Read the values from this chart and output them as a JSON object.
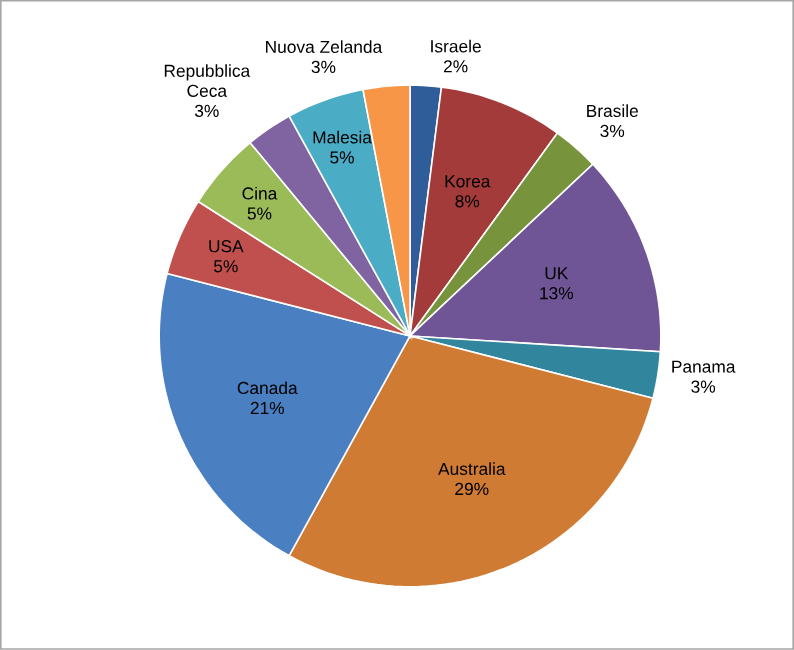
{
  "chart_data": {
    "type": "pie",
    "categories": [
      "Israele",
      "Korea",
      "Brasile",
      "UK",
      "Panama",
      "Australia",
      "Canada",
      "USA",
      "Cina",
      "Repubblica Ceca",
      "Malesia",
      "Nuova Zelanda"
    ],
    "values": [
      2,
      8,
      3,
      13,
      3,
      29,
      21,
      5,
      5,
      3,
      5,
      3
    ],
    "value_labels": [
      "2%",
      "8%",
      "3%",
      "13%",
      "3%",
      "29%",
      "21%",
      "5%",
      "5%",
      "3%",
      "5%",
      "3%"
    ],
    "colors": [
      "#2e5d99",
      "#a33b3a",
      "#77933c",
      "#6f5596",
      "#31859c",
      "#d07b33",
      "#4a7fc1",
      "#c0504d",
      "#9bbb59",
      "#8064a2",
      "#4bacc6",
      "#f79646"
    ]
  }
}
